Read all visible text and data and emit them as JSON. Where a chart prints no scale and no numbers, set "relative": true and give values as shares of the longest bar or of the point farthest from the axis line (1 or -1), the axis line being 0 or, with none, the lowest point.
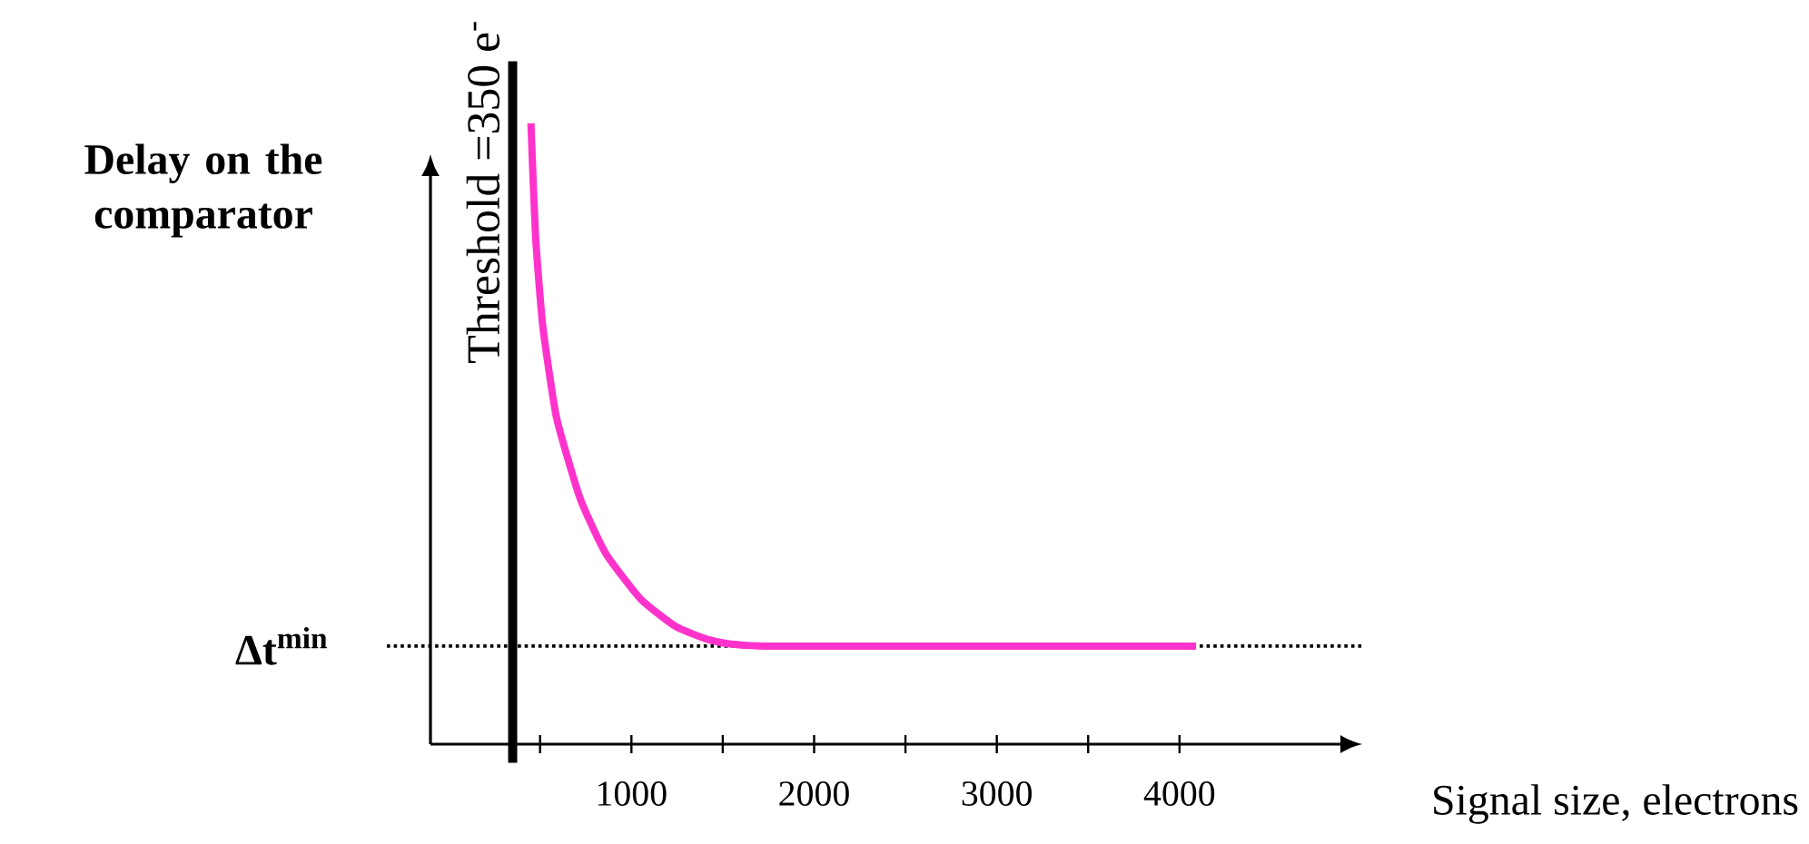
{
  "chart_data": {
    "type": "line",
    "relative": true,
    "xlabel": "Signal size, electrons",
    "ylabel": "Delay on the comparator",
    "xlim": [
      -100,
      5000
    ],
    "xticks": [
      {
        "value": 500,
        "label": null
      },
      1000,
      {
        "value": 1500,
        "label": null
      },
      2000,
      {
        "value": 2500,
        "label": null
      },
      3000,
      {
        "value": 3500,
        "label": null
      },
      4000
    ],
    "series": [
      {
        "color": "#ff33cc",
        "x": [
          450,
          475,
          515,
          590,
          720,
          860,
          1050,
          1240,
          1440,
          1740,
          4090
        ],
        "values": [
          1,
          0.819,
          0.673,
          0.526,
          0.395,
          0.307,
          0.234,
          0.19,
          0.167,
          0.158,
          0.158
        ]
      }
    ],
    "ref_lines": [
      {
        "axis": "x",
        "value": 350,
        "label": "Threshold =350 e$^{-}$",
        "color": "#000000",
        "line_style": "solid"
      },
      {
        "axis": "y",
        "value": 0.158,
        "label": "**Δt$^{min}$**",
        "color": "#000000",
        "line_style": "dotted"
      }
    ],
    "grid": false,
    "marker": "none",
    "line_style": "solid"
  }
}
